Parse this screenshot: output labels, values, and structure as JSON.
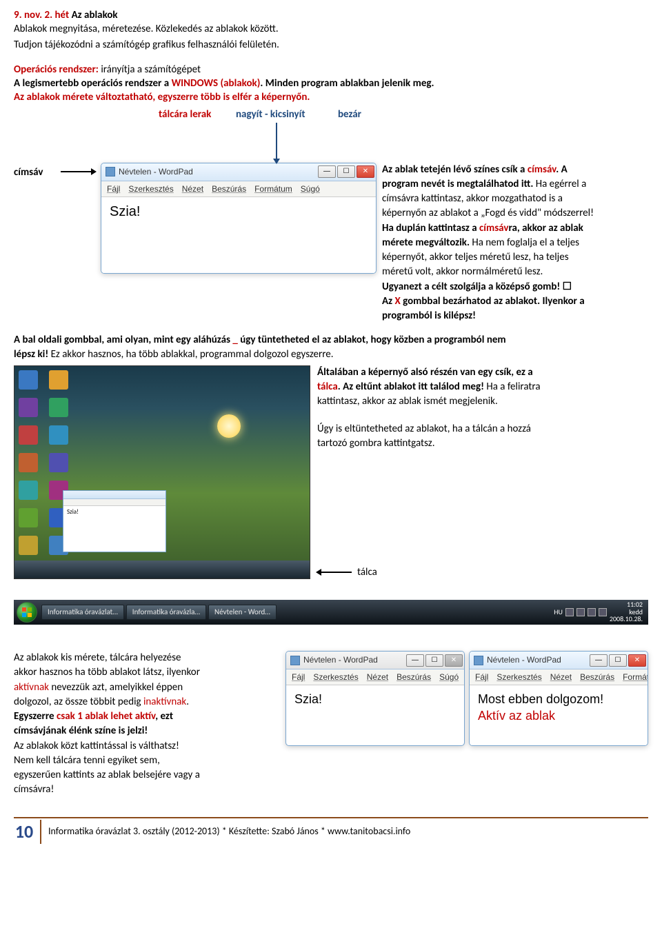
{
  "heading": {
    "prefix": "9. nov. 2. hét ",
    "title": "Az ablakok"
  },
  "intro": {
    "line1": "Ablakok megnyitása, méretezése. Közlekedés az ablakok között.",
    "line2": "Tudjon tájékozódni a számítógép grafikus felhasználói felületén."
  },
  "os": {
    "label": "Operációs rendszer:",
    "text": " irányítja a számítógépet"
  },
  "os2_a": "A legismertebb operációs rendszer a ",
  "os2_b": "WINDOWS (ablakok)",
  "os2_c": ". Minden program ablakban jelenik meg.",
  "os3": "Az ablakok mérete változtatható, egyszerre több is elfér a képernyőn.",
  "arrows": {
    "l1": "tálcára lerak",
    "l2": "nagyít - kicsinyít",
    "l3": "bezár"
  },
  "cimsav": "címsáv",
  "wordpad": {
    "title": "Névtelen - WordPad",
    "menu": [
      "Fájl",
      "Szerkesztés",
      "Nézet",
      "Beszúrás",
      "Formátum",
      "Súgó"
    ],
    "body": "Szia!"
  },
  "right": {
    "p1a": "Az ablak tetején lévő színes csík a ",
    "p1b": "címsáv",
    "p1c": ". A",
    "p2": "program nevét is megtalálhatod itt.",
    "p2b": " Ha egérrel a",
    "p3": "címsávra kattintasz, akkor mozgathatod is a",
    "p4": "képernyőn az ablakot a „Fogd és vidd\" módszerrel!",
    "p5a": "Ha duplán kattintasz a ",
    "p5b": "címsáv",
    "p5c": "ra, akkor az ablak",
    "p6": "mérete megváltozik.",
    "p6b": " Ha nem foglalja el a teljes",
    "p7": "képernyőt, akkor teljes méretű lesz, ha teljes",
    "p8": "méretű volt, akkor normálméretű lesz.",
    "p9": "Ugyanezt a célt szolgálja a középső gomb! ☐",
    "p10a": "Az ",
    "p10b": "X",
    "p10c": " gombbal bezárhatod az ablakot. Ilyenkor a",
    "p11": "programból is kilépsz!"
  },
  "mid": {
    "p1a": "A bal oldali gombbal, ami olyan, mint egy aláhúzás ",
    "p1u": "_",
    "p1b": " úgy tüntetheted el az ablakot, hogy közben a programból nem",
    "p2a": "lépsz ki!",
    "p2b": " Ez akkor hasznos, ha több ablakkal, programmal dolgozol egyszerre."
  },
  "deskright": {
    "p1a": "Általában a képernyő alsó részén van egy csík, ez a",
    "p1b": "tálca",
    "p1c": ". Az eltűnt ablakot itt találod meg!",
    "p1d": " Ha a feliratra",
    "p2": "kattintasz, akkor az ablak ismét megjelenik.",
    "p3": "Úgy is eltüntetheted az ablakot, ha a tálcán a hozzá",
    "p4": "tartozó gombra kattintgatsz."
  },
  "talca": "tálca",
  "taskbar": {
    "btn1": "Informatika óravázlat…",
    "btn2": "Informatika óravázla…",
    "btn3": "Névtelen - Word…",
    "lang": "HU",
    "time": "11:02",
    "day": "kedd",
    "date": "2008.10.28."
  },
  "bottom": {
    "p1": "Az ablakok kis mérete, tálcára helyezése",
    "p2": "akkor hasznos ha több ablakot látsz, ilyenkor",
    "p3a": "aktívnak",
    "p3b": " nevezzük azt, amelyikkel éppen",
    "p4a": "dolgozol, az össze többit pedig ",
    "p4b": "inaktívnak",
    "p4c": ".",
    "p5a": "Egyszerre ",
    "p5b": "csak 1 ablak lehet aktív",
    "p5c": ", ezt",
    "p6": "címsávjának élénk színe is jelzi!",
    "p7": "Az ablakok közt kattintással is válthatsz!",
    "p8": "Nem kell tálcára tenni egyiket sem,",
    "p9": "egyszerűen kattints az ablak belsejére vagy a",
    "p10": "címsávra!"
  },
  "win2": {
    "body1": "Most ebben dolgozom!",
    "body2": "Aktív az ablak"
  },
  "footer": {
    "page": "10",
    "text": "Informatika óravázlat 3. osztály (2012-2013) * Készítette: Szabó János * www.tanitobacsi.info"
  },
  "iconColors": [
    "#3a78c2",
    "#e0a030",
    "#7040a0",
    "#30a060",
    "#c04040",
    "#3090c0",
    "#c06030",
    "#5050b0",
    "#30a0a0",
    "#a03080",
    "#60a030",
    "#3060c0",
    "#c0a030",
    "#4080c0"
  ]
}
